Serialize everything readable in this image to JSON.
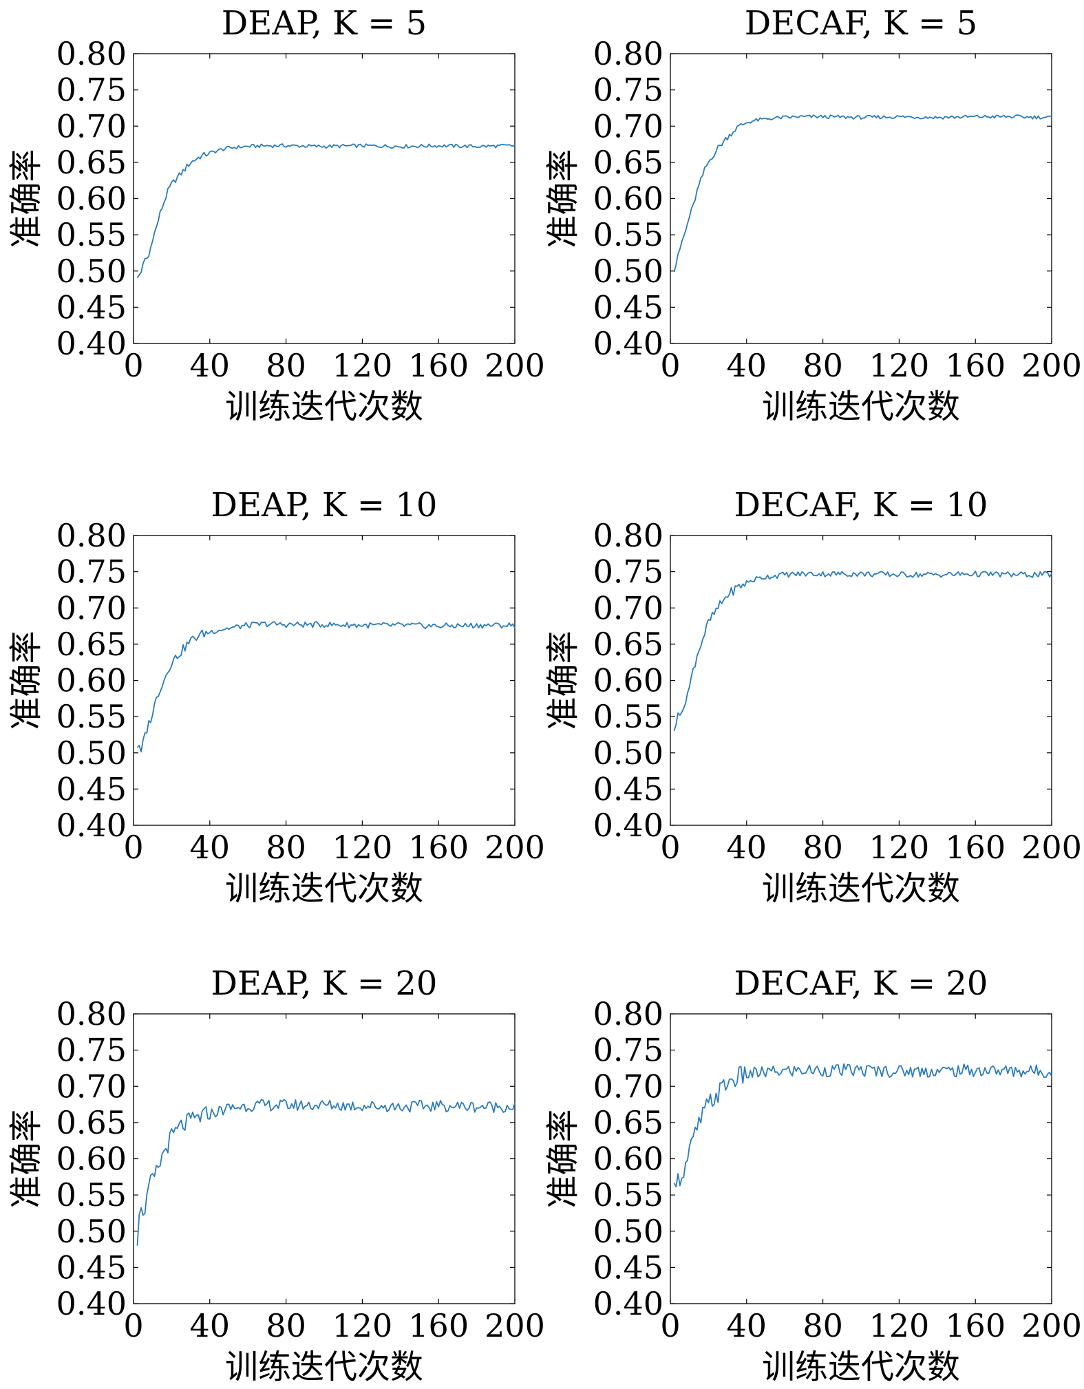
{
  "figure": {
    "charts": [
      {
        "title": "DEAP, K = 5",
        "xlabel": "训练迭代次数",
        "ylabel": "准确率"
      },
      {
        "title": "DECAF, K = 5",
        "xlabel": "训练迭代次数",
        "ylabel": "准确率"
      },
      {
        "title": "DEAP, K = 10",
        "xlabel": "训练迭代次数",
        "ylabel": "准确率"
      },
      {
        "title": "DECAF, K = 10",
        "xlabel": "训练迭代次数",
        "ylabel": "准确率"
      },
      {
        "title": "DEAP, K = 20",
        "xlabel": "训练迭代次数",
        "ylabel": "准确率"
      },
      {
        "title": "DECAF, K = 20",
        "xlabel": "训练迭代次数",
        "ylabel": "准确率"
      }
    ]
  },
  "chart_data": [
    {
      "type": "line",
      "title": "DEAP, K = 5",
      "xlabel": "训练迭代次数",
      "ylabel": "准确率",
      "xlim": [
        0,
        200
      ],
      "ylim": [
        0.4,
        0.8
      ],
      "xticks": [
        0,
        40,
        80,
        120,
        160,
        200
      ],
      "yticks": [
        0.4,
        0.45,
        0.5,
        0.55,
        0.6,
        0.65,
        0.7,
        0.75,
        0.8
      ],
      "xtick_labels": [
        "0",
        "40",
        "80",
        "120",
        "160",
        "200"
      ],
      "ytick_labels": [
        "0.40",
        "0.45",
        "0.50",
        "0.55",
        "0.60",
        "0.65",
        "0.70",
        "0.75",
        "0.80"
      ],
      "color": "#2b7bba",
      "grid": false,
      "series": [
        {
          "x": [
            2,
            4,
            6,
            8,
            10,
            12,
            14,
            16,
            18,
            20,
            25,
            30,
            35,
            40,
            45,
            50,
            60,
            70,
            80,
            100,
            120,
            140,
            160,
            180,
            200
          ],
          "y": [
            0.49,
            0.5,
            0.515,
            0.52,
            0.545,
            0.56,
            0.58,
            0.595,
            0.61,
            0.62,
            0.635,
            0.65,
            0.658,
            0.663,
            0.667,
            0.67,
            0.672,
            0.673,
            0.673,
            0.672,
            0.673,
            0.672,
            0.673,
            0.672,
            0.673
          ]
        }
      ]
    },
    {
      "type": "line",
      "title": "DECAF, K = 5",
      "xlabel": "训练迭代次数",
      "ylabel": "准确率",
      "xlim": [
        0,
        200
      ],
      "ylim": [
        0.4,
        0.8
      ],
      "xticks": [
        0,
        40,
        80,
        120,
        160,
        200
      ],
      "yticks": [
        0.4,
        0.45,
        0.5,
        0.55,
        0.6,
        0.65,
        0.7,
        0.75,
        0.8
      ],
      "xtick_labels": [
        "0",
        "40",
        "80",
        "120",
        "160",
        "200"
      ],
      "ytick_labels": [
        "0.40",
        "0.45",
        "0.50",
        "0.55",
        "0.60",
        "0.65",
        "0.70",
        "0.75",
        "0.80"
      ],
      "color": "#2b7bba",
      "grid": false,
      "series": [
        {
          "x": [
            2,
            4,
            6,
            8,
            10,
            12,
            14,
            16,
            18,
            20,
            25,
            30,
            35,
            40,
            45,
            50,
            60,
            70,
            80,
            100,
            120,
            140,
            160,
            180,
            200
          ],
          "y": [
            0.5,
            0.52,
            0.54,
            0.555,
            0.575,
            0.59,
            0.61,
            0.625,
            0.64,
            0.65,
            0.67,
            0.685,
            0.698,
            0.705,
            0.708,
            0.71,
            0.712,
            0.713,
            0.713,
            0.712,
            0.713,
            0.712,
            0.713,
            0.713,
            0.712
          ]
        }
      ]
    },
    {
      "type": "line",
      "title": "DEAP, K = 10",
      "xlabel": "训练迭代次数",
      "ylabel": "准确率",
      "xlim": [
        0,
        200
      ],
      "ylim": [
        0.4,
        0.8
      ],
      "xticks": [
        0,
        40,
        80,
        120,
        160,
        200
      ],
      "yticks": [
        0.4,
        0.45,
        0.5,
        0.55,
        0.6,
        0.65,
        0.7,
        0.75,
        0.8
      ],
      "xtick_labels": [
        "0",
        "40",
        "80",
        "120",
        "160",
        "200"
      ],
      "ytick_labels": [
        "0.40",
        "0.45",
        "0.50",
        "0.55",
        "0.60",
        "0.65",
        "0.70",
        "0.75",
        "0.80"
      ],
      "color": "#2b7bba",
      "grid": false,
      "series": [
        {
          "x": [
            2,
            4,
            6,
            8,
            10,
            12,
            14,
            16,
            18,
            20,
            25,
            30,
            35,
            40,
            45,
            50,
            60,
            70,
            80,
            100,
            120,
            140,
            160,
            180,
            200
          ],
          "y": [
            0.51,
            0.5,
            0.525,
            0.54,
            0.555,
            0.575,
            0.59,
            0.6,
            0.615,
            0.625,
            0.64,
            0.655,
            0.663,
            0.667,
            0.67,
            0.672,
            0.676,
            0.678,
            0.677,
            0.677,
            0.676,
            0.676,
            0.675,
            0.676,
            0.676
          ]
        }
      ]
    },
    {
      "type": "line",
      "title": "DECAF, K = 10",
      "xlabel": "训练迭代次数",
      "ylabel": "准确率",
      "xlim": [
        0,
        200
      ],
      "ylim": [
        0.4,
        0.8
      ],
      "xticks": [
        0,
        40,
        80,
        120,
        160,
        200
      ],
      "yticks": [
        0.4,
        0.45,
        0.5,
        0.55,
        0.6,
        0.65,
        0.7,
        0.75,
        0.8
      ],
      "xtick_labels": [
        "0",
        "40",
        "80",
        "120",
        "160",
        "200"
      ],
      "ytick_labels": [
        "0.40",
        "0.45",
        "0.50",
        "0.55",
        "0.60",
        "0.65",
        "0.70",
        "0.75",
        "0.80"
      ],
      "color": "#2b7bba",
      "grid": false,
      "series": [
        {
          "x": [
            2,
            4,
            6,
            8,
            10,
            12,
            14,
            16,
            18,
            20,
            25,
            30,
            35,
            40,
            45,
            50,
            60,
            70,
            80,
            100,
            120,
            140,
            160,
            180,
            200
          ],
          "y": [
            0.53,
            0.56,
            0.55,
            0.575,
            0.59,
            0.615,
            0.635,
            0.65,
            0.665,
            0.68,
            0.7,
            0.718,
            0.728,
            0.735,
            0.74,
            0.743,
            0.746,
            0.747,
            0.747,
            0.747,
            0.746,
            0.746,
            0.747,
            0.746,
            0.746
          ]
        }
      ]
    },
    {
      "type": "line",
      "title": "DEAP, K = 20",
      "xlabel": "训练迭代次数",
      "ylabel": "准确率",
      "xlim": [
        0,
        200
      ],
      "ylim": [
        0.4,
        0.8
      ],
      "xticks": [
        0,
        40,
        80,
        120,
        160,
        200
      ],
      "yticks": [
        0.4,
        0.45,
        0.5,
        0.55,
        0.6,
        0.65,
        0.7,
        0.75,
        0.8
      ],
      "xtick_labels": [
        "0",
        "40",
        "80",
        "120",
        "160",
        "200"
      ],
      "ytick_labels": [
        "0.40",
        "0.45",
        "0.50",
        "0.55",
        "0.60",
        "0.65",
        "0.70",
        "0.75",
        "0.80"
      ],
      "color": "#2b7bba",
      "grid": false,
      "series": [
        {
          "x": [
            2,
            4,
            6,
            8,
            10,
            12,
            14,
            16,
            18,
            20,
            25,
            30,
            35,
            40,
            45,
            50,
            60,
            70,
            80,
            100,
            120,
            140,
            160,
            180,
            200
          ],
          "y": [
            0.49,
            0.54,
            0.52,
            0.56,
            0.57,
            0.58,
            0.595,
            0.61,
            0.62,
            0.63,
            0.645,
            0.652,
            0.658,
            0.662,
            0.666,
            0.67,
            0.673,
            0.674,
            0.674,
            0.674,
            0.673,
            0.672,
            0.673,
            0.672,
            0.672
          ]
        }
      ]
    },
    {
      "type": "line",
      "title": "DECAF, K = 20",
      "xlabel": "训练迭代次数",
      "ylabel": "准确率",
      "xlim": [
        0,
        200
      ],
      "ylim": [
        0.4,
        0.8
      ],
      "xticks": [
        0,
        40,
        80,
        120,
        160,
        200
      ],
      "yticks": [
        0.4,
        0.45,
        0.5,
        0.55,
        0.6,
        0.65,
        0.7,
        0.75,
        0.8
      ],
      "xtick_labels": [
        "0",
        "40",
        "80",
        "120",
        "160",
        "200"
      ],
      "ytick_labels": [
        "0.40",
        "0.45",
        "0.50",
        "0.55",
        "0.60",
        "0.65",
        "0.70",
        "0.75",
        "0.80"
      ],
      "color": "#2b7bba",
      "grid": false,
      "series": [
        {
          "x": [
            2,
            4,
            6,
            8,
            10,
            12,
            14,
            16,
            18,
            20,
            25,
            30,
            35,
            40,
            45,
            50,
            60,
            70,
            80,
            100,
            120,
            140,
            160,
            180,
            200
          ],
          "y": [
            0.58,
            0.57,
            0.58,
            0.59,
            0.61,
            0.625,
            0.64,
            0.655,
            0.665,
            0.675,
            0.69,
            0.705,
            0.712,
            0.716,
            0.718,
            0.719,
            0.721,
            0.722,
            0.722,
            0.722,
            0.721,
            0.721,
            0.722,
            0.721,
            0.721
          ]
        }
      ]
    }
  ]
}
